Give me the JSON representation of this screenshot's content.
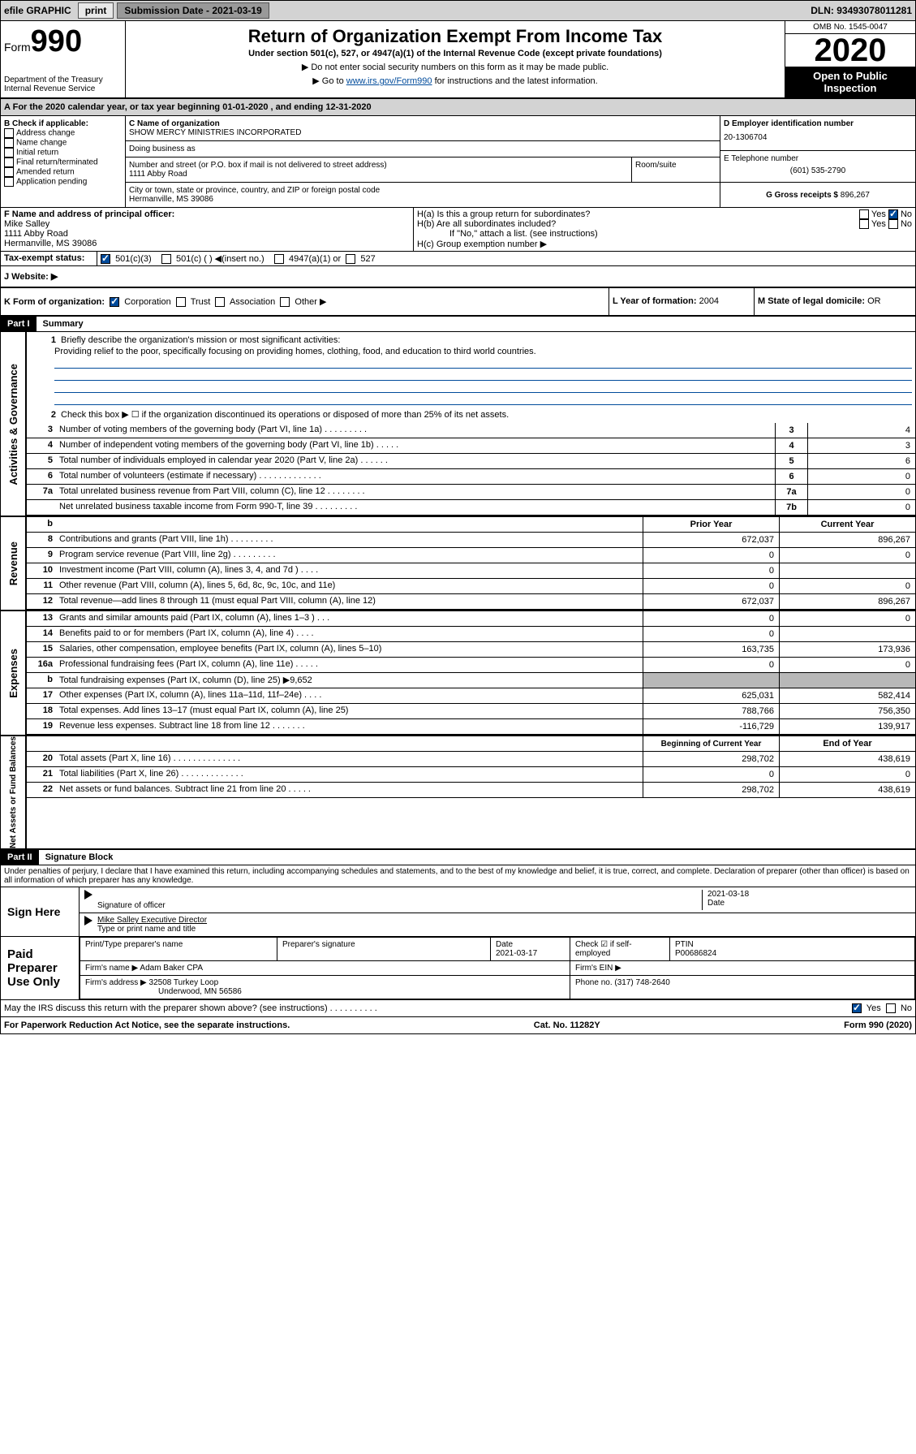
{
  "topbar": {
    "efile": "efile GRAPHIC",
    "print": "print",
    "subdate_label": "Submission Date - 2021-03-19",
    "dln": "DLN: 93493078011281"
  },
  "header": {
    "form": "Form",
    "num": "990",
    "dept": "Department of the Treasury",
    "irs": "Internal Revenue Service",
    "title": "Return of Organization Exempt From Income Tax",
    "subtitle": "Under section 501(c), 527, or 4947(a)(1) of the Internal Revenue Code (except private foundations)",
    "note1": "▶ Do not enter social security numbers on this form as it may be made public.",
    "note2a": "▶ Go to ",
    "note2link": "www.irs.gov/Form990",
    "note2b": " for instructions and the latest information.",
    "omb": "OMB No. 1545-0047",
    "year": "2020",
    "open": "Open to Public Inspection"
  },
  "taxyear": "For the 2020 calendar year, or tax year beginning 01-01-2020     , and ending 12-31-2020",
  "boxB": {
    "label": "B Check if applicable:",
    "items": [
      "Address change",
      "Name change",
      "Initial return",
      "Final return/terminated",
      "Amended return",
      "Application pending"
    ]
  },
  "boxC": {
    "label": "C Name of organization",
    "name": "SHOW MERCY MINISTRIES INCORPORATED",
    "dba_label": "Doing business as",
    "dba": "",
    "addr_label": "Number and street (or P.O. box if mail is not delivered to street address)",
    "room": "Room/suite",
    "addr": "1111 Abby Road",
    "city_label": "City or town, state or province, country, and ZIP or foreign postal code",
    "city": "Hermanville, MS  39086"
  },
  "boxD": {
    "label": "D Employer identification number",
    "val": "20-1306704"
  },
  "boxE": {
    "label": "E Telephone number",
    "val": "(601) 535-2790"
  },
  "boxG": {
    "label": "G Gross receipts $",
    "val": "896,267"
  },
  "boxF": {
    "label": "F  Name and address of principal officer:",
    "name": "Mike Salley",
    "addr": "1111 Abby Road",
    "city": "Hermanville, MS  39086"
  },
  "boxH": {
    "a": "H(a)  Is this a group return for subordinates?",
    "b": "H(b)  Are all subordinates included?",
    "note": "If \"No,\" attach a list. (see instructions)",
    "c": "H(c)  Group exemption number ▶",
    "yes": "Yes",
    "no": "No"
  },
  "boxI": {
    "label": "Tax-exempt status:",
    "c3": "501(c)(3)",
    "c": "501(c) (  ) ◀(insert no.)",
    "a1": "4947(a)(1) or",
    "527": "527"
  },
  "boxJ": {
    "label": "J    Website: ▶"
  },
  "boxK": {
    "label": "K Form of organization:",
    "corp": "Corporation",
    "trust": "Trust",
    "assoc": "Association",
    "other": "Other ▶"
  },
  "boxL": {
    "label": "L Year of formation:",
    "val": "2004"
  },
  "boxM": {
    "label": "M State of legal domicile:",
    "val": "OR"
  },
  "part1": {
    "label": "Part I",
    "title": "Summary"
  },
  "summary": {
    "l1": {
      "num": "1",
      "text": "Briefly describe the organization's mission or most significant activities:",
      "val": "Providing relief to the poor, specifically focusing on providing homes, clothing, food, and education to third world countries."
    },
    "l2": {
      "num": "2",
      "text": "Check this box ▶ ☐  if the organization discontinued its operations or disposed of more than 25% of its net assets."
    },
    "lines": [
      {
        "num": "3",
        "text": "Number of voting members of the governing body (Part VI, line 1a)   .    .    .    .    .    .    .    .    .",
        "cell": "3",
        "val": "4"
      },
      {
        "num": "4",
        "text": "Number of independent voting members of the governing body (Part VI, line 1b)   .    .    .    .    .",
        "cell": "4",
        "val": "3"
      },
      {
        "num": "5",
        "text": "Total number of individuals employed in calendar year 2020 (Part V, line 2a)   .    .    .    .    .    .",
        "cell": "5",
        "val": "6"
      },
      {
        "num": "6",
        "text": "Total number of volunteers (estimate if necessary)   .    .    .    .    .    .    .    .    .    .    .    .    .",
        "cell": "6",
        "val": "0"
      },
      {
        "num": "7a",
        "text": "Total unrelated business revenue from Part VIII, column (C), line 12   .    .    .    .    .    .    .    .",
        "cell": "7a",
        "val": "0"
      },
      {
        "num": "",
        "text": "Net unrelated business taxable income from Form 990-T, line 39   .    .    .    .    .    .    .    .    .",
        "cell": "7b",
        "val": "0"
      }
    ],
    "rev_head": {
      "num": "b",
      "prior": "Prior Year",
      "curr": "Current Year"
    },
    "revenue": [
      {
        "num": "8",
        "text": "Contributions and grants (Part VIII, line 1h)   .    .    .    .    .    .    .    .    .",
        "prior": "672,037",
        "curr": "896,267"
      },
      {
        "num": "9",
        "text": "Program service revenue (Part VIII, line 2g)   .    .    .    .    .    .    .    .    .",
        "prior": "0",
        "curr": "0"
      },
      {
        "num": "10",
        "text": "Investment income (Part VIII, column (A), lines 3, 4, and 7d )   .    .    .    .",
        "prior": "0",
        "curr": ""
      },
      {
        "num": "11",
        "text": "Other revenue (Part VIII, column (A), lines 5, 6d, 8c, 9c, 10c, and 11e)",
        "prior": "0",
        "curr": "0"
      },
      {
        "num": "12",
        "text": "Total revenue—add lines 8 through 11 (must equal Part VIII, column (A), line 12)",
        "prior": "672,037",
        "curr": "896,267"
      }
    ],
    "expenses": [
      {
        "num": "13",
        "text": "Grants and similar amounts paid (Part IX, column (A), lines 1–3 )   .    .    .",
        "prior": "0",
        "curr": "0"
      },
      {
        "num": "14",
        "text": "Benefits paid to or for members (Part IX, column (A), line 4)   .    .    .    .",
        "prior": "0",
        "curr": ""
      },
      {
        "num": "15",
        "text": "Salaries, other compensation, employee benefits (Part IX, column (A), lines 5–10)",
        "prior": "163,735",
        "curr": "173,936"
      },
      {
        "num": "16a",
        "text": "Professional fundraising fees (Part IX, column (A), line 11e)   .    .    .    .    .",
        "prior": "0",
        "curr": "0"
      },
      {
        "num": "b",
        "text": "Total fundraising expenses (Part IX, column (D), line 25) ▶9,652",
        "prior": "gray",
        "curr": "gray"
      },
      {
        "num": "17",
        "text": "Other expenses (Part IX, column (A), lines 11a–11d, 11f–24e)   .    .    .    .",
        "prior": "625,031",
        "curr": "582,414"
      },
      {
        "num": "18",
        "text": "Total expenses. Add lines 13–17 (must equal Part IX, column (A), line 25)",
        "prior": "788,766",
        "curr": "756,350"
      },
      {
        "num": "19",
        "text": "Revenue less expenses. Subtract line 18 from line 12   .    .    .    .    .    .    .",
        "prior": "-116,729",
        "curr": "139,917"
      }
    ],
    "net_head": {
      "prior": "Beginning of Current Year",
      "curr": "End of Year"
    },
    "net": [
      {
        "num": "20",
        "text": "Total assets (Part X, line 16)   .    .    .    .    .    .    .    .    .    .    .    .    .    .",
        "prior": "298,702",
        "curr": "438,619"
      },
      {
        "num": "21",
        "text": "Total liabilities (Part X, line 26)   .    .    .    .    .    .    .    .    .    .    .    .    .",
        "prior": "0",
        "curr": "0"
      },
      {
        "num": "22",
        "text": "Net assets or fund balances. Subtract line 21 from line 20   .    .    .    .    .",
        "prior": "298,702",
        "curr": "438,619"
      }
    ]
  },
  "vlabels": {
    "gov": "Activities & Governance",
    "rev": "Revenue",
    "exp": "Expenses",
    "net": "Net Assets or Fund Balances"
  },
  "part2": {
    "label": "Part II",
    "title": "Signature Block",
    "perjury": "Under penalties of perjury, I declare that I have examined this return, including accompanying schedules and statements, and to the best of my knowledge and belief, it is true, correct, and complete. Declaration of preparer (other than officer) is based on all information of which preparer has any knowledge."
  },
  "sign": {
    "here": "Sign Here",
    "sig_label": "Signature of officer",
    "date": "2021-03-18",
    "date_label": "Date",
    "name": "Mike Salley  Executive Director",
    "name_label": "Type or print name and title"
  },
  "paid": {
    "label": "Paid Preparer Use Only",
    "h1": "Print/Type preparer's name",
    "h2": "Preparer's signature",
    "h3": "Date",
    "h3v": "2021-03-17",
    "h4": "Check ☑ if self-employed",
    "h5": "PTIN",
    "h5v": "P00686824",
    "firm_label": "Firm's name    ▶",
    "firm": "Adam Baker CPA",
    "ein": "Firm's EIN ▶",
    "addr_label": "Firm's address ▶",
    "addr1": "32508 Turkey Loop",
    "addr2": "Underwood, MN  56586",
    "phone_label": "Phone no.",
    "phone": "(317) 748-2640"
  },
  "discuss": "May the IRS discuss this return with the preparer shown above? (see instructions)    .    .    .    .    .    .    .    .    .    .",
  "footer": {
    "left": "For Paperwork Reduction Act Notice, see the separate instructions.",
    "mid": "Cat. No. 11282Y",
    "right": "Form 990 (2020)"
  }
}
